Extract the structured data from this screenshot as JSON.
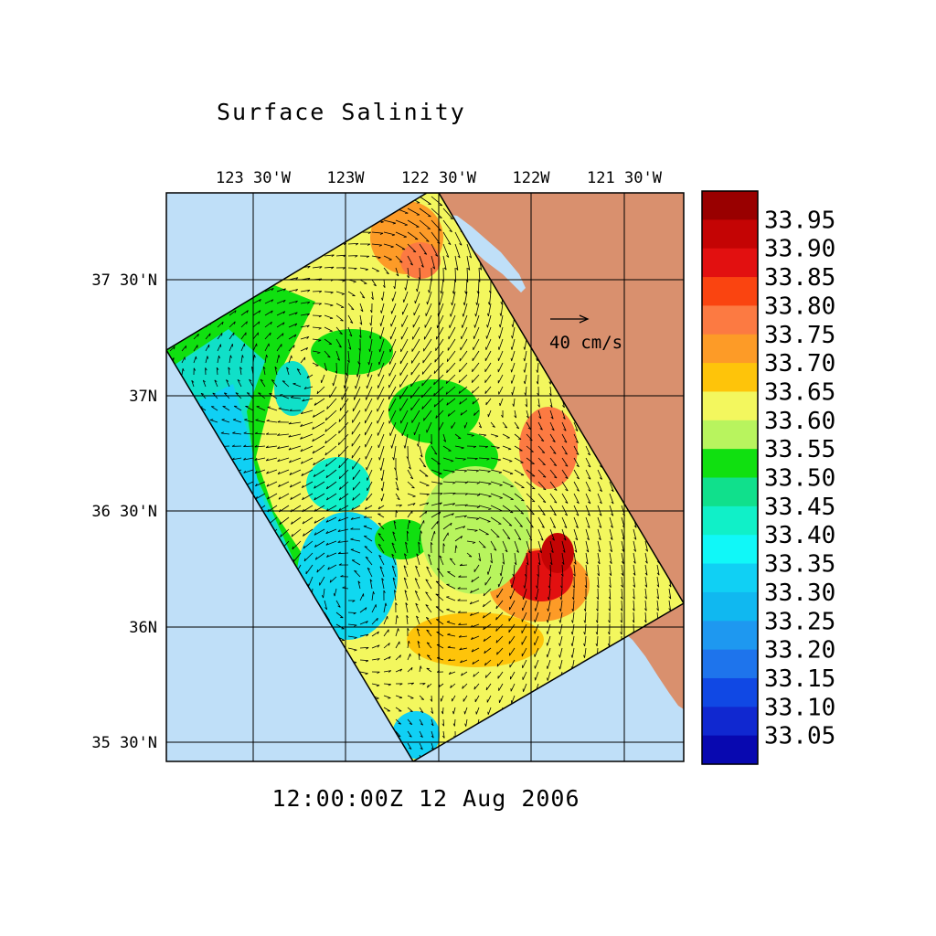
{
  "title": "Surface Salinity",
  "timestamp": "12:00:00Z  12 Aug 2006",
  "scale_label": "40 cm/s",
  "lon_labels": [
    "123 30'W",
    "123W",
    "122 30'W",
    "122W",
    "121 30'W"
  ],
  "lat_labels": [
    "37 30'N",
    "37N",
    "36 30'N",
    "36N",
    "35 30'N"
  ],
  "colorbar": {
    "labels": [
      "33.95",
      "33.90",
      "33.85",
      "33.80",
      "33.75",
      "33.70",
      "33.65",
      "33.60",
      "33.55",
      "33.50",
      "33.45",
      "33.40",
      "33.35",
      "33.30",
      "33.25",
      "33.20",
      "33.15",
      "33.10",
      "33.05"
    ],
    "colors": [
      "#990000",
      "#c40404",
      "#e21010",
      "#fa4410",
      "#fc7a42",
      "#fd9b27",
      "#fec40a",
      "#f3f75e",
      "#b8f45e",
      "#10e010",
      "#10e08c",
      "#10f0c8",
      "#10f8f8",
      "#10d0f4",
      "#10b8f0",
      "#1e98f0",
      "#1e74ec",
      "#1048e4",
      "#1028d0",
      "#0808b0"
    ]
  },
  "colors": {
    "ocean": "#bfdff8",
    "land": "#d9906e",
    "frame": "#000000"
  },
  "vectors": {
    "legend_cm_s": 40
  }
}
